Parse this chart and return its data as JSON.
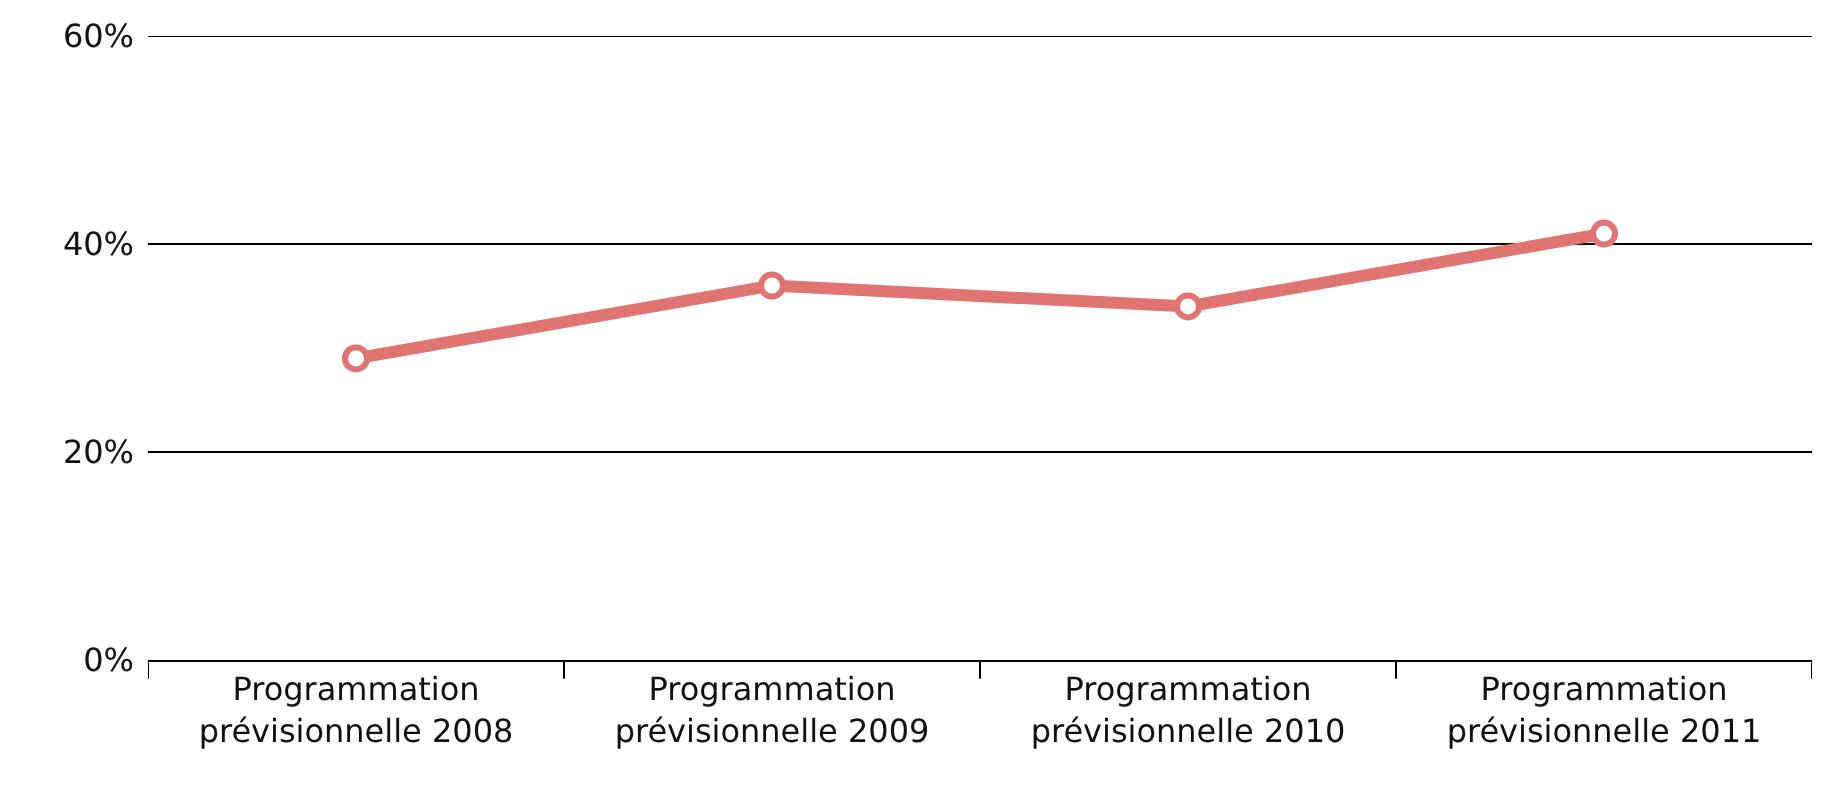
{
  "chart_data": {
    "type": "line",
    "categories": [
      "Programmation\nprévisionnelle 2008",
      "Programmation\nprévisionnelle 2009",
      "Programmation\nprévisionnelle 2010",
      "Programmation\nprévisionnelle 2011"
    ],
    "series": [
      {
        "color": "#e07470",
        "values": [
          29,
          36,
          34,
          41
        ]
      }
    ],
    "ylim": [
      0,
      60
    ],
    "yticks": [
      {
        "value": 0,
        "label": "0%"
      },
      {
        "value": 20,
        "label": "20%"
      },
      {
        "value": 40,
        "label": "40%"
      },
      {
        "value": 60,
        "label": "60%"
      }
    ],
    "grid": "y",
    "marker": "circle",
    "line_style": "solid"
  }
}
